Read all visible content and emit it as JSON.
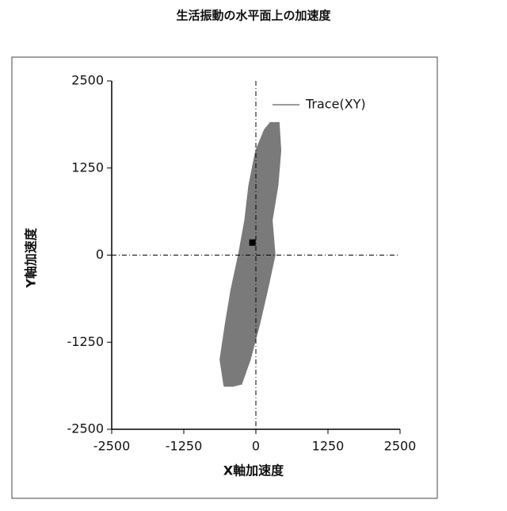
{
  "chart_data": {
    "type": "line",
    "title": "生活振動の水平面上の加速度",
    "x_label": "X軸加速度",
    "y_label": "Y軸加速度",
    "xlim": [
      -2500,
      2500
    ],
    "ylim": [
      -2500,
      2500
    ],
    "xticks": [
      -2500,
      -1250,
      0,
      1250,
      2500
    ],
    "yticks": [
      -2500,
      -1250,
      0,
      1250,
      2500
    ],
    "zero_lines": true,
    "fill": true,
    "legend": "upper right",
    "series": [
      {
        "name": "Trace(XY)",
        "color": "#7a7a7a",
        "x": [
          -550,
          -620,
          -530,
          -430,
          -300,
          -190,
          -120,
          0,
          150,
          250,
          400,
          430,
          380,
          280,
          330,
          200,
          60,
          -100,
          -250,
          -400,
          -550
        ],
        "y": [
          -1880,
          -1500,
          -1000,
          -500,
          0,
          500,
          1000,
          1500,
          1800,
          1900,
          1900,
          1500,
          1000,
          500,
          0,
          -500,
          -1000,
          -1500,
          -1850,
          -1880,
          -1880
        ]
      }
    ],
    "marker": {
      "x": -60,
      "y": 180,
      "color": "#000000"
    }
  }
}
